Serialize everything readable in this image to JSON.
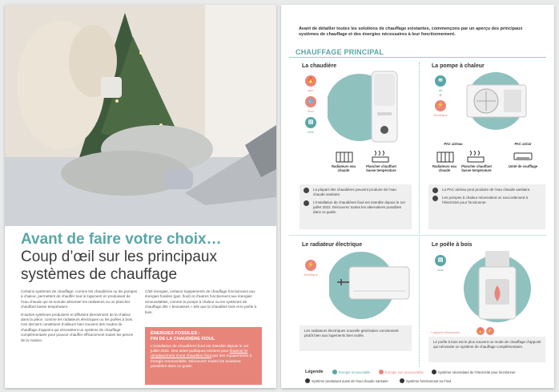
{
  "left": {
    "title": "Avant de faire votre choix…",
    "subtitle": "Coup d’œil sur les principaux systèmes de chauffage",
    "col1_p1": "Certains systèmes de chauffage, comme les chaudières ou les pompes à chaleur, permettent de chauffer tout le logement en produisant de l’eau chaude qui va ensuite alimenter les radiateurs ou un plancher chauffant basse température.",
    "col1_p2": "D’autres systèmes produisent et diffusent directement de la chaleur dans la pièce, comme les radiateurs électriques ou les poêles à bois. Ces derniers constituent d’ailleurs bien souvent des modes de chauffage d’appoint qui nécessitent un système de chauffage complémentaire pour pouvoir chauffer efficacement toutes les pièces de la maison.",
    "col2_p1": "Côté énergies, certains équipements de chauffage fonctionnent aux énergies fossiles (gaz, fioul) et d’autres fonctionnent aux énergies renouvelables, comme la pompe à chaleur ou les systèmes de chauffage dits « biomasses » tels que la chaudière bois et le poêle à bois.",
    "callout_title1": "ÉNERGIES FOSSILES :",
    "callout_title2": "FIN DE LA CHAUDIÈRE FIOUL",
    "callout_body1": "L’installation de chaudières fioul est interdite depuis le 1er juillet 2022. Des aides publiques existent pour ",
    "callout_link": "financer le remplacement d’une chaudière fioul",
    "callout_body2": " par des équipements à énergie renouvelable. Découvrez toutes les solutions possibles dans ce guide."
  },
  "right": {
    "intro": "Avant de détailler toutes les solutions de chauffage existantes, commençons par un aperçu des principaux systèmes de chauffage et des énergies nécessaires à leur fonctionnement.",
    "section_title": "CHAUFFAGE PRINCIPAL",
    "chaudiere": {
      "title": "La chaudière",
      "energies": [
        "gaz",
        "fioul",
        "bois"
      ],
      "radiateurs": "Radiateurs eau chaude",
      "plancher": "Plancher chauffant basse température",
      "info1": "La plupart des chaudières peuvent produire de l’eau chaude sanitaire.",
      "info2": "L’installation de chaudières fioul est interdite depuis le 1er juillet 2022. Découvrez toutes les alternatives possibles dans ce guide."
    },
    "pac": {
      "title": "La pompe à chaleur",
      "energy_air": "air",
      "plus": "+",
      "energy_elec": "électrique",
      "air_eau": "PAC air/eau",
      "air_air": "PAC air/air",
      "radiateurs": "Radiateurs eau chaude",
      "plancher": "Plancher chauffant basse température",
      "unite": "Unité de soufflage",
      "info1": "La PAC air/eau peut produire de l’eau chaude sanitaire.",
      "info2": "Les pompes à chaleur nécessitent un raccordement à l’électricité pour fonctionner."
    },
    "radiateur": {
      "title": "Le radiateur électrique",
      "energy": "électrique",
      "info": "Les radiateurs électriques nouvelle génération conviennent plutôt bien aux logements bien isolés."
    },
    "poele": {
      "title": "Le poêle à bois",
      "energy": "bois",
      "appoint": "+ appoint nécessaire",
      "info": "Le poêle à bois est le plus souvent un mode de chauffage d’appoint qui nécessite un système de chauffage complémentaire."
    },
    "legend": {
      "title": "Légende",
      "renouvelable": "Énergie renouvelable",
      "non_renouvelable": "Énergie non renouvelable",
      "electricite": "Système nécessitant de l’électricité pour fonctionner",
      "eau_chaude": "Système produisant aussi de l’eau chaude sanitaire",
      "fioul": "Système fonctionnant au Fioul"
    }
  },
  "colors": {
    "teal": "#5aa6a6",
    "coral": "#e8857a",
    "grey_box": "#efefef"
  }
}
